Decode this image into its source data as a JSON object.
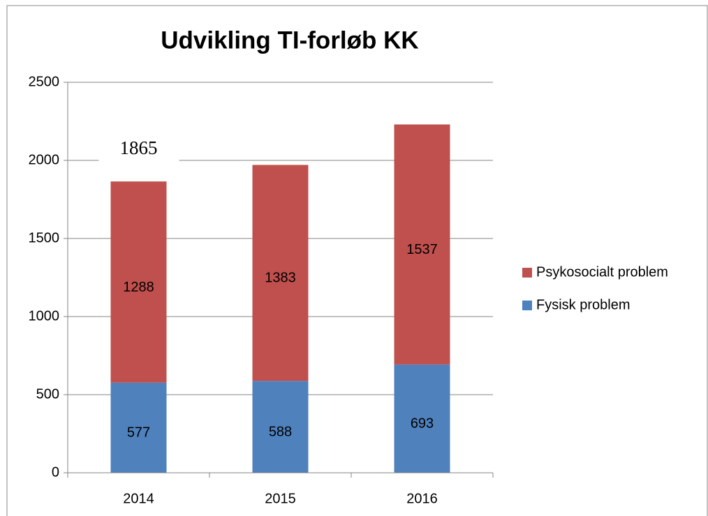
{
  "chart_data": {
    "type": "stacked_bar",
    "title": "Udvikling TI-forløb KK",
    "categories": [
      "2014",
      "2015",
      "2016"
    ],
    "series": [
      {
        "name": "Fysisk problem",
        "color": "#4f81bd",
        "values": [
          577,
          588,
          693
        ]
      },
      {
        "name": "Psykosocialt problem",
        "color": "#c0504d",
        "values": [
          1288,
          1383,
          1537
        ]
      }
    ],
    "annotation": {
      "text": "1865"
    },
    "ylim": [
      0,
      2500
    ],
    "yticks": [
      0,
      500,
      1000,
      1500,
      2000,
      2500
    ],
    "grid": true,
    "legend": "right"
  }
}
